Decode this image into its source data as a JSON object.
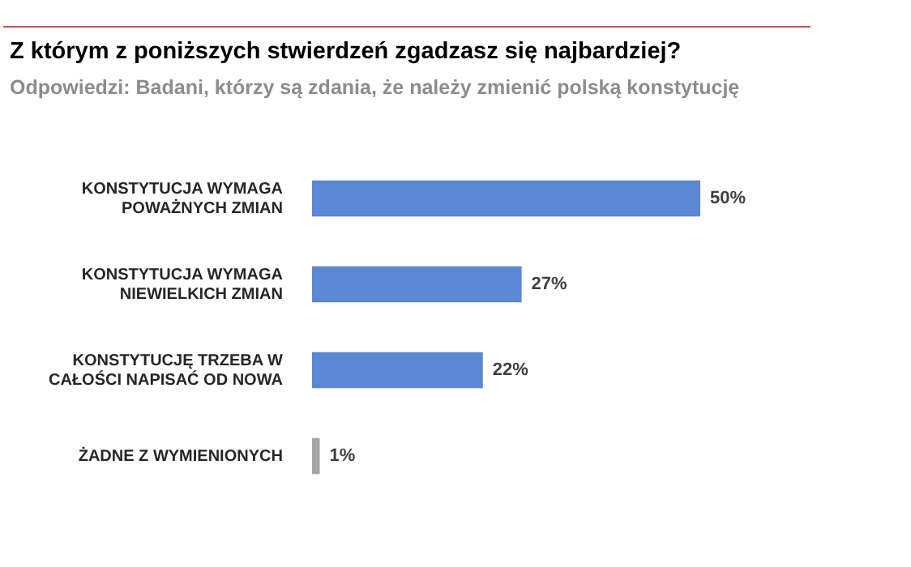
{
  "chart_data": {
    "type": "bar",
    "orientation": "horizontal",
    "title": "Z którym z poniższych stwierdzeń zgadzasz się najbardziej?",
    "subtitle": "Odpowiedzi: Badani, którzy są zdania, że należy zmienić polską konstytucję",
    "categories": [
      "KONSTYTUCJA WYMAGA POWAŻNYCH ZMIAN",
      "KONSTYTUCJA WYMAGA NIEWIELKICH ZMIAN",
      "KONSTYTUCJĘ TRZEBA W CAŁOŚCI NAPISAĆ OD NOWA",
      "ŻADNE Z WYMIENIONYCH"
    ],
    "values": [
      50,
      27,
      22,
      1
    ],
    "colors": [
      "#5b87d3",
      "#5b87d3",
      "#5b87d3",
      "#a6a6a6"
    ],
    "value_labels": [
      "50%",
      "27%",
      "22%",
      "1%"
    ]
  }
}
